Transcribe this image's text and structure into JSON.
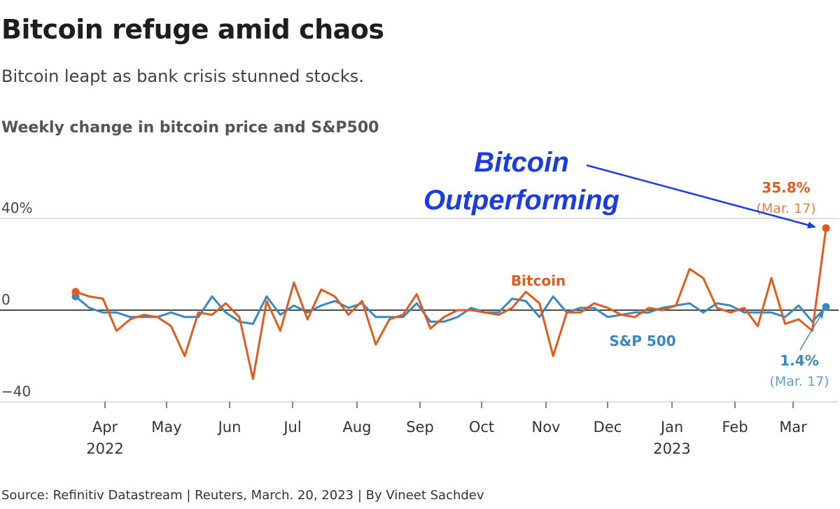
{
  "header": {
    "title": "Bitcoin refuge amid chaos",
    "subtitle": "Bitcoin leapt as bank crisis stunned stocks.",
    "chart_label": "Weekly change in bitcoin price and S&P500"
  },
  "annotation": {
    "line1": "Bitcoin",
    "line2": "Outperforming",
    "color": "#1a3ce6"
  },
  "footer": {
    "source": "Source: Refinitiv Datastream | Reuters, March. 20, 2023 | By Vineet Sachdev"
  },
  "chart_data": {
    "type": "line",
    "ylim": [
      -40,
      40
    ],
    "y_ticks": [
      {
        "value": 40,
        "label": "40%"
      },
      {
        "value": 0,
        "label": "0"
      },
      {
        "value": -40,
        "label": "−40"
      }
    ],
    "x_ticks": [
      {
        "label": "Apr",
        "sub": "2022"
      },
      {
        "label": "May",
        "sub": ""
      },
      {
        "label": "Jun",
        "sub": ""
      },
      {
        "label": "Jul",
        "sub": ""
      },
      {
        "label": "Aug",
        "sub": ""
      },
      {
        "label": "Sep",
        "sub": ""
      },
      {
        "label": "Oct",
        "sub": ""
      },
      {
        "label": "Nov",
        "sub": ""
      },
      {
        "label": "Dec",
        "sub": ""
      },
      {
        "label": "Jan",
        "sub": "2023"
      },
      {
        "label": "Feb",
        "sub": ""
      },
      {
        "label": "Mar",
        "sub": ""
      }
    ],
    "series": [
      {
        "name": "Bitcoin",
        "color": "#e35b1c",
        "values": [
          8,
          6,
          5,
          -9,
          -4,
          -2,
          -3,
          -7,
          -20,
          -1,
          -2,
          3,
          -3,
          -30,
          4,
          -9,
          12,
          -4,
          9,
          6,
          -2,
          4,
          -15,
          -4,
          -2,
          7,
          -8,
          -3,
          0,
          0,
          -1,
          -2,
          1,
          8,
          3,
          -20,
          -1,
          -1,
          3,
          1,
          -2,
          -3,
          1,
          0,
          2,
          18,
          14,
          1,
          -1,
          1,
          -7,
          14,
          -6,
          -4,
          -9,
          35.8
        ]
      },
      {
        "name": "S&P 500",
        "color": "#3a88bf",
        "values": [
          6,
          1,
          -1,
          -1,
          -3,
          -3,
          -3,
          -1,
          -3,
          -3,
          6,
          -1,
          -5,
          -6,
          6,
          -2,
          2,
          -1,
          2,
          4,
          1,
          3,
          -3,
          -3,
          -3,
          3,
          -5,
          -5,
          -3,
          1,
          -1,
          -1,
          5,
          4,
          -3,
          6,
          -1,
          1,
          1,
          -3,
          -2,
          -1,
          -1,
          1,
          2,
          3,
          -1,
          3,
          2,
          -1,
          -1,
          -1,
          -3,
          2,
          -5,
          1.4
        ]
      }
    ],
    "series_labels": [
      {
        "name": "Bitcoin",
        "text": "Bitcoin"
      },
      {
        "name": "S&P 500",
        "text": "S&P 500"
      }
    ],
    "end_labels": [
      {
        "name": "Bitcoin",
        "value": "35.8%",
        "date": "(Mar. 17)"
      },
      {
        "name": "S&P 500",
        "value": "1.4%",
        "date": "(Mar. 17)"
      }
    ]
  }
}
